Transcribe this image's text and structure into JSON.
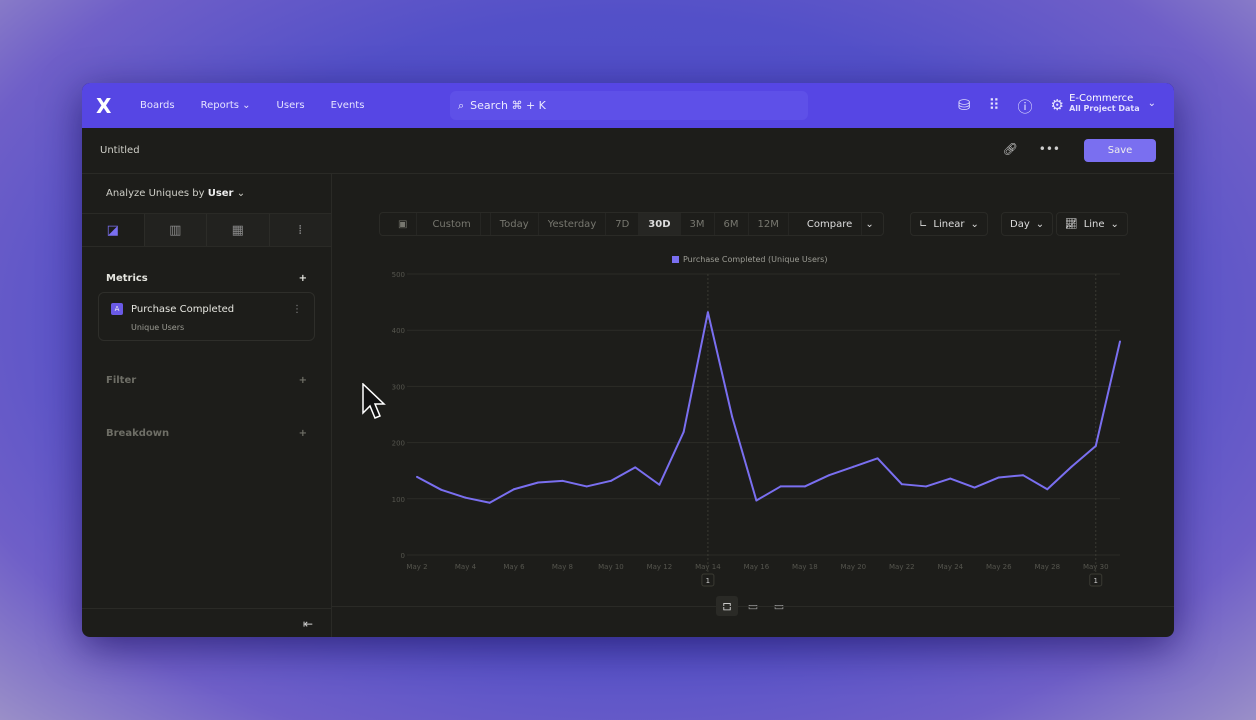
{
  "header": {
    "logo": "X",
    "nav": [
      "Boards",
      "Reports",
      "Users",
      "Events"
    ],
    "search": "Search  ⌘ + K",
    "project": "E-Commerce",
    "project_sub": "All Project Data"
  },
  "titlebar": {
    "title": "Untitled",
    "save": "Save"
  },
  "sidebar": {
    "analyze_label": "Analyze Uniques by",
    "analyze_value": "User",
    "metrics": "Metrics",
    "metric": {
      "badge": "A",
      "name": "Purchase Completed",
      "sub": "Unique Users"
    },
    "filter": "Filter",
    "breakdown": "Breakdown"
  },
  "toolbar": {
    "ranges": [
      "Custom",
      "Today",
      "Yesterday",
      "7D",
      "30D",
      "3M",
      "6M",
      "12M"
    ],
    "active": "30D",
    "compare": "Compare",
    "scale": "Linear",
    "interval": "Day",
    "chart_type": "Line"
  },
  "colors": {
    "accent": "#5646e4",
    "line": "#7a6ff0"
  },
  "chart_data": {
    "type": "line",
    "legend_position": "top",
    "series": [
      {
        "name": "Purchase Completed (Unique Users)",
        "values": [
          139,
          116,
          102,
          93,
          117,
          129,
          132,
          122,
          132,
          156,
          125,
          219,
          432,
          246,
          97,
          122,
          122,
          142,
          157,
          172,
          126,
          122,
          136,
          120,
          138,
          142,
          117,
          157,
          194,
          380
        ]
      }
    ],
    "x": [
      "May 2",
      "May 3",
      "May 4",
      "May 5",
      "May 6",
      "May 7",
      "May 8",
      "May 9",
      "May 10",
      "May 11",
      "May 12",
      "May 13",
      "May 14",
      "May 15",
      "May 16",
      "May 17",
      "May 18",
      "May 19",
      "May 20",
      "May 21",
      "May 22",
      "May 23",
      "May 24",
      "May 25",
      "May 26",
      "May 27",
      "May 28",
      "May 29",
      "May 30",
      "May 31"
    ],
    "x_tick_labels": [
      "May 2",
      "May 4",
      "May 6",
      "May 8",
      "May 10",
      "May 12",
      "May 14",
      "May 16",
      "May 18",
      "May 20",
      "May 22",
      "May 24",
      "May 26",
      "May 28",
      "May 30"
    ],
    "y_ticks": [
      0,
      100,
      200,
      300,
      400,
      500
    ],
    "ylim": [
      0,
      500
    ],
    "grid": true,
    "annotations": [
      {
        "x": "May 14",
        "label": "1"
      },
      {
        "x": "May 30",
        "label": "1"
      }
    ]
  }
}
